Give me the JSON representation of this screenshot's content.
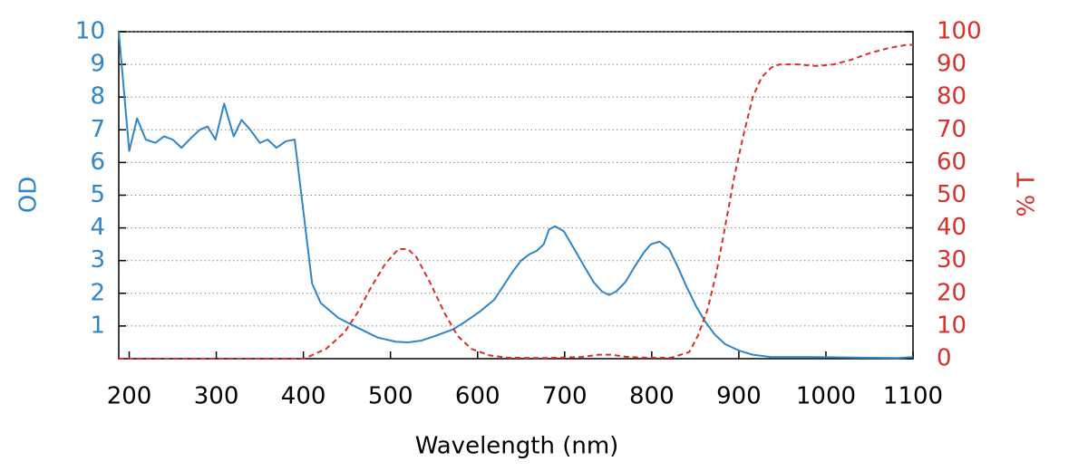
{
  "chart_data": {
    "type": "line",
    "xlabel": "Wavelength (nm)",
    "ylabel": "OD",
    "y2label": "% T",
    "xlim": [
      188,
      1100
    ],
    "xticks": [
      200,
      300,
      400,
      500,
      600,
      700,
      800,
      900,
      1000,
      1100
    ],
    "ylim": [
      0,
      10
    ],
    "yticks": [
      1,
      2,
      3,
      4,
      5,
      6,
      7,
      8,
      9,
      10
    ],
    "y2lim": [
      0,
      100
    ],
    "y2ticks": [
      0,
      10,
      20,
      30,
      40,
      50,
      60,
      70,
      80,
      90,
      100
    ],
    "grid": true,
    "ylabel_color": "#2e86c8",
    "y2label_color": "#d6312b",
    "series": [
      {
        "color": "#2e86c8",
        "line_style": "solid",
        "x": [
          188,
          200,
          209,
          219,
          230,
          240,
          250,
          260,
          271,
          281,
          290,
          299,
          309,
          320,
          329,
          339,
          350,
          359,
          369,
          380,
          390,
          400,
          410,
          420,
          440,
          462,
          485,
          506,
          520,
          535,
          552,
          572,
          587,
          603,
          619,
          629,
          640,
          650,
          660,
          668,
          676,
          682,
          689,
          699,
          710,
          723,
          733,
          743,
          751,
          759,
          770,
          780,
          791,
          799,
          809,
          820,
          830,
          840,
          851,
          861,
          872,
          884,
          900,
          916,
          937,
          989,
          1040,
          1082,
          1100
        ],
        "values": [
          10,
          6.35,
          7.35,
          6.7,
          6.6,
          6.8,
          6.7,
          6.45,
          6.75,
          7.0,
          7.1,
          6.7,
          7.8,
          6.8,
          7.3,
          7.0,
          6.6,
          6.7,
          6.45,
          6.65,
          6.7,
          4.5,
          2.3,
          1.7,
          1.25,
          0.95,
          0.65,
          0.52,
          0.5,
          0.55,
          0.7,
          0.9,
          1.15,
          1.45,
          1.8,
          2.2,
          2.65,
          3.0,
          3.2,
          3.3,
          3.5,
          3.95,
          4.05,
          3.9,
          3.4,
          2.8,
          2.35,
          2.05,
          1.95,
          2.05,
          2.35,
          2.8,
          3.25,
          3.5,
          3.58,
          3.35,
          2.8,
          2.2,
          1.6,
          1.15,
          0.75,
          0.45,
          0.25,
          0.12,
          0.05,
          0.05,
          0.03,
          0.02,
          0.05
        ]
      },
      {
        "color": "#d6312b",
        "line_style": "dashed",
        "axis": "y2",
        "x": [
          188,
          400,
          405,
          426,
          447,
          462,
          478,
          494,
          509,
          520,
          530,
          546,
          562,
          577,
          593,
          614,
          635,
          676,
          718,
          739,
          754,
          770,
          791,
          822,
          843,
          853,
          864,
          874,
          884,
          895,
          905,
          916,
          926,
          937,
          947,
          968,
          989,
          1009,
          1030,
          1051,
          1072,
          1093,
          1100
        ],
        "values": [
          0,
          0,
          0.5,
          3,
          8,
          14,
          22,
          29,
          33.5,
          33.5,
          31,
          23,
          14,
          7,
          3,
          1,
          0.3,
          0.2,
          0.5,
          1.2,
          1.2,
          0.6,
          0.3,
          0.3,
          2,
          7,
          15,
          26,
          40,
          56,
          68,
          80,
          86,
          89,
          90,
          90,
          89.5,
          90,
          91.5,
          93.5,
          95,
          96,
          96
        ]
      }
    ]
  }
}
